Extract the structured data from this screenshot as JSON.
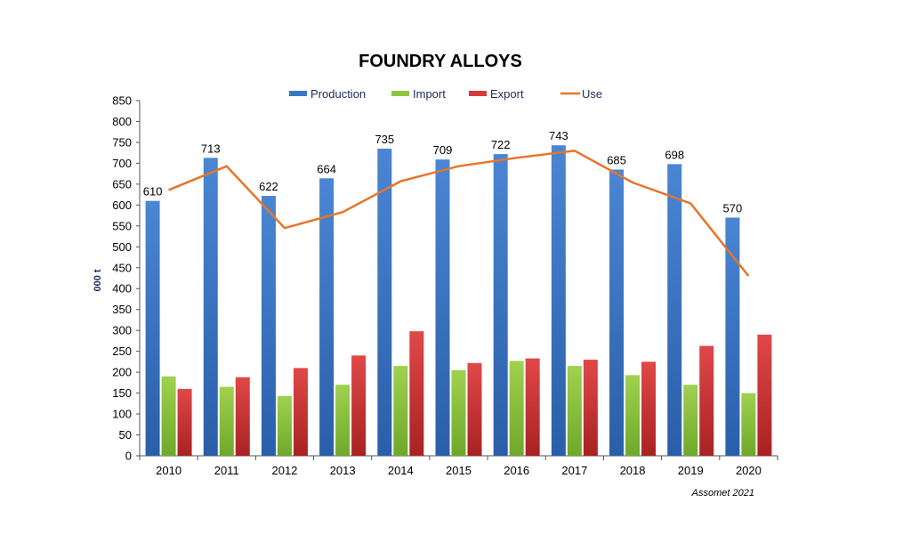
{
  "chart_data": {
    "type": "bar",
    "title": "FOUNDRY ALLOYS",
    "ylabel": "000 t",
    "xlabel": "",
    "source": "Assomet 2021",
    "categories": [
      "2010",
      "2011",
      "2012",
      "2013",
      "2014",
      "2015",
      "2016",
      "2017",
      "2018",
      "2019",
      "2020"
    ],
    "ylim": [
      0,
      850
    ],
    "yticks": [
      0,
      50,
      100,
      150,
      200,
      250,
      300,
      350,
      400,
      450,
      500,
      550,
      600,
      650,
      700,
      750,
      800,
      850
    ],
    "grid": false,
    "legend_position": "top",
    "series": [
      {
        "name": "Production",
        "kind": "bar",
        "color": "#3a75c4",
        "values": [
          610,
          713,
          622,
          664,
          735,
          709,
          722,
          743,
          685,
          698,
          570
        ],
        "labels": [
          "610",
          "713",
          "622",
          "664",
          "735",
          "709",
          "722",
          "743",
          "685",
          "698",
          "570"
        ]
      },
      {
        "name": "Import",
        "kind": "bar",
        "color": "#8cc63f",
        "values": [
          190,
          165,
          143,
          170,
          215,
          205,
          227,
          215,
          193,
          170,
          150
        ]
      },
      {
        "name": "Export",
        "kind": "bar",
        "color": "#d63a3a",
        "values": [
          160,
          188,
          210,
          240,
          298,
          222,
          233,
          230,
          225,
          263,
          290
        ]
      },
      {
        "name": "Use",
        "kind": "line",
        "color": "#e8742a",
        "values": [
          636,
          693,
          545,
          583,
          657,
          693,
          713,
          730,
          654,
          604,
          430
        ]
      }
    ]
  }
}
